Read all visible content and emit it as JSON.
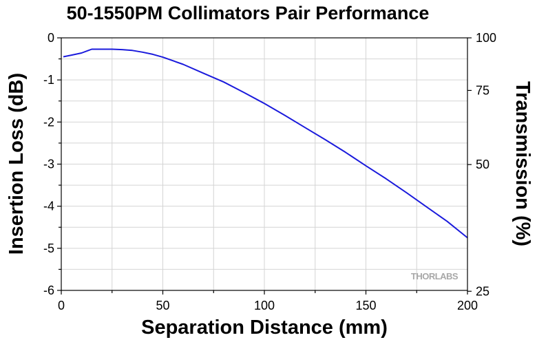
{
  "chart_data": {
    "type": "line",
    "title": "50-1550PM Collimators Pair Performance",
    "xlabel": "Separation Distance (mm)",
    "ylabel": "Insertion Loss (dB)",
    "y2label": "Transmission (%)",
    "xlim": [
      0,
      200
    ],
    "ylim": [
      -6,
      0
    ],
    "x_ticks": [
      0,
      50,
      100,
      150,
      200
    ],
    "y_ticks": [
      0,
      -1,
      -2,
      -3,
      -4,
      -5,
      -6
    ],
    "y2_ticks": [
      100,
      75,
      50,
      25
    ],
    "grid": true,
    "watermark": "THORLABS",
    "line_color": "#1a1adc",
    "series": [
      {
        "x": [
          1,
          5,
          10,
          15,
          20,
          25,
          30,
          35,
          40,
          45,
          50,
          60,
          70,
          80,
          90,
          100,
          110,
          120,
          130,
          140,
          150,
          160,
          170,
          180,
          190,
          200
        ],
        "y": [
          -0.45,
          -0.41,
          -0.36,
          -0.27,
          -0.27,
          -0.27,
          -0.28,
          -0.3,
          -0.34,
          -0.39,
          -0.46,
          -0.63,
          -0.84,
          -1.05,
          -1.3,
          -1.56,
          -1.84,
          -2.13,
          -2.42,
          -2.72,
          -3.04,
          -3.35,
          -3.68,
          -4.02,
          -4.36,
          -4.75
        ]
      }
    ]
  }
}
